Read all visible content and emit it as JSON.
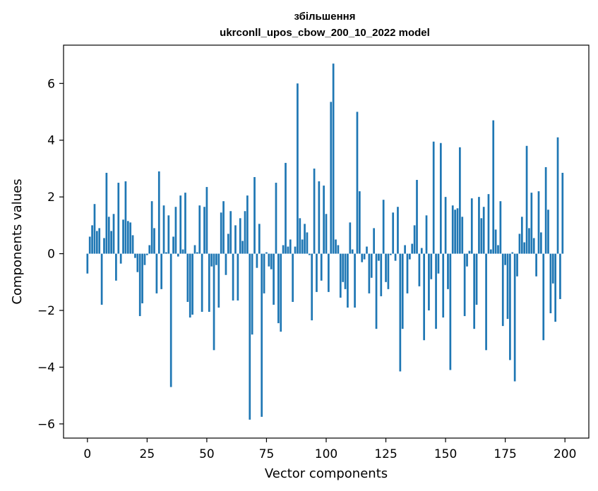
{
  "chart_data": {
    "type": "bar",
    "title": "збільшення",
    "subtitle": "ukrconll_upos_cbow_200_10_2022 model",
    "xlabel": "Vector components",
    "ylabel": "Components values",
    "xlim": [
      -10,
      210
    ],
    "ylim": [
      -6.5,
      7.35
    ],
    "xticks": [
      0,
      25,
      50,
      75,
      100,
      125,
      150,
      175,
      200
    ],
    "yticks": [
      -6,
      -4,
      -2,
      0,
      2,
      4,
      6
    ],
    "ytick_labels": [
      "−6",
      "−4",
      "−2",
      "0",
      "2",
      "4",
      "6"
    ],
    "bar_color": "#1f77b4",
    "grid": false,
    "x": [
      0,
      1,
      2,
      3,
      4,
      5,
      6,
      7,
      8,
      9,
      10,
      11,
      12,
      13,
      14,
      15,
      16,
      17,
      18,
      19,
      20,
      21,
      22,
      23,
      24,
      25,
      26,
      27,
      28,
      29,
      30,
      31,
      32,
      33,
      34,
      35,
      36,
      37,
      38,
      39,
      40,
      41,
      42,
      43,
      44,
      45,
      46,
      47,
      48,
      49,
      50,
      51,
      52,
      53,
      54,
      55,
      56,
      57,
      58,
      59,
      60,
      61,
      62,
      63,
      64,
      65,
      66,
      67,
      68,
      69,
      70,
      71,
      72,
      73,
      74,
      75,
      76,
      77,
      78,
      79,
      80,
      81,
      82,
      83,
      84,
      85,
      86,
      87,
      88,
      89,
      90,
      91,
      92,
      93,
      94,
      95,
      96,
      97,
      98,
      99,
      100,
      101,
      102,
      103,
      104,
      105,
      106,
      107,
      108,
      109,
      110,
      111,
      112,
      113,
      114,
      115,
      116,
      117,
      118,
      119,
      120,
      121,
      122,
      123,
      124,
      125,
      126,
      127,
      128,
      129,
      130,
      131,
      132,
      133,
      134,
      135,
      136,
      137,
      138,
      139,
      140,
      141,
      142,
      143,
      144,
      145,
      146,
      147,
      148,
      149,
      150,
      151,
      152,
      153,
      154,
      155,
      156,
      157,
      158,
      159,
      160,
      161,
      162,
      163,
      164,
      165,
      166,
      167,
      168,
      169,
      170,
      171,
      172,
      173,
      174,
      175,
      176,
      177,
      178,
      179,
      180,
      181,
      182,
      183,
      184,
      185,
      186,
      187,
      188,
      189,
      190,
      191,
      192,
      193,
      194,
      195,
      196,
      197,
      198,
      199
    ],
    "values": [
      -0.7,
      0.6,
      1.0,
      1.75,
      0.8,
      0.9,
      -1.8,
      0.55,
      2.85,
      1.3,
      0.8,
      1.4,
      -0.95,
      2.5,
      -0.35,
      1.2,
      2.55,
      1.15,
      1.1,
      0.65,
      -0.15,
      -0.65,
      -2.2,
      -1.75,
      -0.4,
      -0.05,
      0.3,
      1.85,
      0.9,
      -1.4,
      2.9,
      -1.25,
      1.7,
      0.05,
      1.35,
      -4.7,
      0.6,
      1.65,
      -0.1,
      2.05,
      0.15,
      2.15,
      -1.7,
      -2.25,
      -2.15,
      0.3,
      0.05,
      1.7,
      -2.05,
      1.65,
      2.35,
      -2.05,
      -0.45,
      -3.4,
      -0.4,
      -1.9,
      1.45,
      1.85,
      -0.75,
      0.7,
      1.5,
      -1.65,
      1.0,
      -1.65,
      1.25,
      0.45,
      1.5,
      2.05,
      -5.85,
      -2.85,
      2.7,
      -0.5,
      1.05,
      -5.75,
      -1.4,
      0.05,
      -0.45,
      -0.55,
      -1.8,
      2.5,
      -2.45,
      -2.75,
      0.3,
      3.2,
      0.25,
      0.5,
      -1.7,
      0.25,
      6.0,
      1.25,
      0.5,
      1.05,
      0.75,
      -0.05,
      -2.35,
      3.0,
      -1.35,
      2.55,
      -0.95,
      2.4,
      1.4,
      -1.35,
      5.35,
      6.7,
      0.5,
      0.3,
      -1.55,
      -1.0,
      -1.25,
      -1.9,
      1.1,
      0.15,
      -1.9,
      5.0,
      2.2,
      -0.3,
      -0.2,
      0.25,
      -1.4,
      -0.85,
      0.9,
      -2.65,
      -0.25,
      -1.5,
      1.9,
      -1.0,
      -1.25,
      -0.05,
      1.45,
      -0.25,
      1.65,
      -4.15,
      -2.65,
      0.3,
      -1.4,
      -0.2,
      0.35,
      1.0,
      2.6,
      -1.15,
      0.2,
      -3.05,
      1.35,
      -2.0,
      -0.9,
      3.95,
      -2.65,
      -0.7,
      3.9,
      -2.25,
      2.0,
      -1.25,
      -4.1,
      1.7,
      1.55,
      1.6,
      3.75,
      1.3,
      -2.2,
      -0.45,
      0.1,
      1.95,
      -2.65,
      -1.8,
      2.0,
      1.25,
      1.65,
      -3.4,
      2.1,
      0.15,
      4.7,
      0.85,
      0.3,
      1.85,
      -2.55,
      -0.4,
      -2.3,
      -3.75,
      0.05,
      -4.5,
      -0.8,
      0.7,
      1.3,
      0.4,
      3.8,
      0.9,
      2.15,
      0.55,
      -0.8,
      2.2,
      0.75,
      -3.05,
      3.05,
      1.55,
      -2.1,
      -1.05,
      -2.4,
      4.1,
      -1.6,
      2.85
    ]
  }
}
